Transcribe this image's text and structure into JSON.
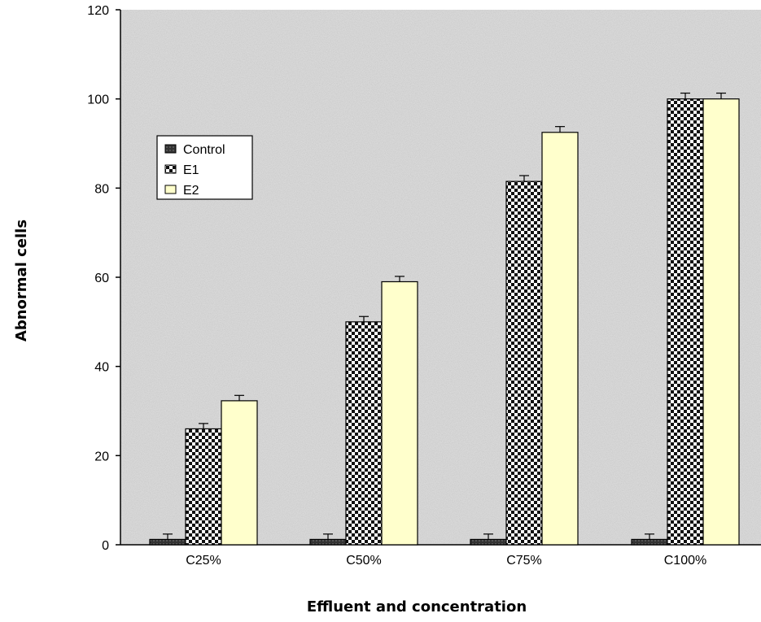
{
  "chart_data": {
    "type": "bar",
    "title": "",
    "xlabel": "Effluent and concentration",
    "ylabel": "Abnormal cells",
    "categories": [
      "C25%",
      "C50%",
      "C75%",
      "C100%"
    ],
    "ylim": [
      0,
      120
    ],
    "yticks": [
      0,
      20,
      40,
      60,
      80,
      100,
      120
    ],
    "series": [
      {
        "name": "Control",
        "values": [
          1.2,
          1.2,
          1.2,
          1.2
        ],
        "errors": [
          1.2,
          1.2,
          1.2,
          1.2
        ],
        "color": "#333333",
        "pattern": "dark"
      },
      {
        "name": "E1",
        "values": [
          26,
          50,
          81.5,
          100
        ],
        "errors": [
          1.2,
          1.2,
          1.3,
          1.3
        ],
        "color": "#1a1a1a",
        "pattern": "checker"
      },
      {
        "name": "E2",
        "values": [
          32.3,
          59,
          92.5,
          100
        ],
        "errors": [
          1.2,
          1.2,
          1.3,
          1.3
        ],
        "color": "#ffffcc",
        "pattern": "solid"
      }
    ],
    "legend_position": "upper-left",
    "grid": false
  }
}
